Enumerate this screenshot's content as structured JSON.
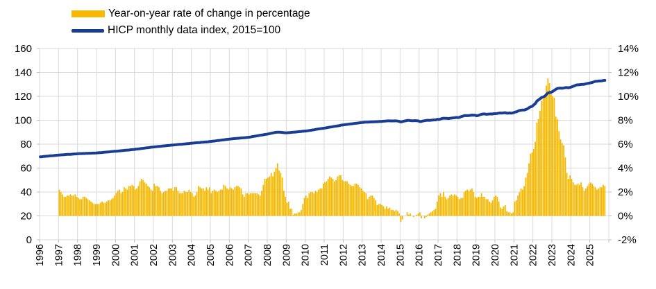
{
  "chart_data": {
    "type": "combo-bar-line",
    "grid": true,
    "legend_position": "top-left",
    "x_axis": {
      "start_year": 1996,
      "end_year": 2025,
      "tick_labels": [
        "1996",
        "1997",
        "1998",
        "1999",
        "2000",
        "2001",
        "2002",
        "2003",
        "2004",
        "2005",
        "2006",
        "2007",
        "2008",
        "2009",
        "2010",
        "2011",
        "2012",
        "2013",
        "2014",
        "2015",
        "2016",
        "2017",
        "2018",
        "2019",
        "2020",
        "2021",
        "2022",
        "2023",
        "2024",
        "2025"
      ]
    },
    "left_axis": {
      "min": 0,
      "max": 160,
      "step": 20,
      "tick_labels": [
        "160",
        "140",
        "120",
        "100",
        "80",
        "60",
        "40",
        "20",
        "0"
      ]
    },
    "right_axis": {
      "min": -2,
      "max": 14,
      "step": 2,
      "tick_labels": [
        "14%",
        "12%",
        "10%",
        "8%",
        "6%",
        "4%",
        "2%",
        "0%",
        "-2%"
      ]
    },
    "series": [
      {
        "name": "Year-on-year rate of change in percentage",
        "type": "bar",
        "axis": "right",
        "color": "#F7B800",
        "unit": "%",
        "start": "1997-01",
        "frequency": "monthly",
        "values": [
          2.2,
          2.0,
          1.8,
          1.6,
          1.6,
          1.7,
          1.7,
          1.8,
          1.7,
          1.7,
          1.8,
          1.6,
          1.5,
          1.4,
          1.4,
          1.6,
          1.6,
          1.5,
          1.4,
          1.3,
          1.2,
          1.1,
          1.0,
          1.0,
          1.0,
          1.0,
          1.1,
          1.2,
          1.1,
          1.1,
          1.2,
          1.3,
          1.3,
          1.4,
          1.5,
          1.7,
          1.9,
          2.1,
          2.2,
          1.9,
          2.0,
          2.4,
          2.3,
          2.2,
          2.5,
          2.5,
          2.6,
          2.5,
          2.2,
          2.3,
          2.5,
          2.9,
          3.1,
          3.0,
          2.8,
          2.7,
          2.5,
          2.4,
          2.2,
          2.1,
          2.7,
          2.5,
          2.5,
          2.4,
          2.1,
          1.9,
          2.0,
          2.1,
          2.1,
          2.3,
          2.3,
          2.3,
          2.1,
          2.4,
          2.4,
          2.1,
          1.9,
          1.9,
          1.9,
          2.1,
          2.0,
          2.0,
          2.2,
          2.0,
          1.9,
          1.6,
          1.7,
          2.0,
          2.5,
          2.4,
          2.3,
          2.3,
          2.1,
          2.4,
          2.2,
          2.4,
          1.9,
          2.1,
          2.2,
          2.1,
          2.0,
          2.1,
          2.2,
          2.2,
          2.6,
          2.5,
          2.3,
          2.2,
          2.4,
          2.3,
          2.2,
          2.4,
          2.5,
          2.5,
          2.4,
          2.3,
          1.8,
          1.6,
          1.9,
          1.9,
          1.8,
          1.9,
          1.9,
          1.9,
          1.9,
          1.9,
          1.8,
          1.7,
          2.1,
          2.6,
          3.1,
          3.1,
          3.2,
          3.3,
          3.6,
          3.3,
          3.7,
          4.0,
          4.4,
          3.8,
          3.6,
          3.2,
          2.1,
          1.6,
          1.1,
          1.2,
          0.6,
          0.6,
          0.1,
          0.2,
          0.2,
          0.3,
          0.3,
          0.5,
          1.0,
          1.5,
          1.7,
          1.5,
          1.9,
          2.0,
          2.0,
          1.9,
          2.1,
          2.0,
          2.2,
          2.3,
          2.3,
          2.7,
          2.8,
          2.9,
          3.1,
          3.3,
          3.2,
          3.1,
          2.9,
          3.0,
          3.3,
          3.4,
          3.4,
          3.0,
          2.9,
          2.9,
          2.9,
          2.7,
          2.6,
          2.5,
          2.5,
          2.7,
          2.7,
          2.6,
          2.4,
          2.3,
          2.1,
          2.0,
          1.9,
          1.4,
          1.6,
          1.7,
          1.7,
          1.5,
          1.3,
          0.9,
          1.0,
          1.0,
          0.9,
          0.8,
          0.6,
          0.8,
          0.6,
          0.7,
          0.5,
          0.5,
          0.4,
          0.5,
          0.4,
          0.2,
          -0.5,
          -0.3,
          0.0,
          0.0,
          0.3,
          0.1,
          0.2,
          0.0,
          -0.1,
          0.0,
          0.1,
          0.2,
          0.3,
          -0.2,
          0.0,
          -0.2,
          -0.1,
          0.1,
          0.2,
          0.3,
          0.4,
          0.5,
          0.6,
          1.2,
          1.7,
          1.9,
          1.6,
          2.0,
          1.6,
          1.4,
          1.5,
          1.7,
          1.8,
          1.7,
          1.8,
          1.7,
          1.6,
          1.4,
          1.5,
          1.5,
          2.0,
          2.1,
          2.2,
          2.1,
          2.2,
          2.3,
          2.0,
          1.6,
          1.5,
          1.6,
          1.6,
          1.9,
          1.6,
          1.6,
          1.4,
          1.4,
          1.2,
          1.1,
          1.3,
          1.6,
          1.7,
          1.6,
          1.2,
          0.7,
          0.6,
          0.8,
          0.9,
          0.4,
          0.3,
          0.3,
          0.2,
          0.3,
          1.2,
          1.3,
          1.7,
          2.0,
          2.3,
          2.2,
          2.5,
          3.2,
          3.6,
          4.4,
          5.2,
          5.3,
          5.6,
          6.2,
          7.8,
          8.1,
          8.8,
          9.6,
          9.8,
          10.1,
          10.9,
          11.5,
          11.1,
          10.4,
          10.0,
          9.9,
          8.3,
          8.1,
          7.1,
          6.4,
          6.1,
          5.9,
          4.9,
          3.6,
          3.1,
          3.4,
          3.1,
          2.8,
          2.6,
          2.6,
          2.7,
          2.6,
          2.8,
          2.4,
          2.1,
          2.3,
          2.5,
          2.7,
          2.8,
          2.7,
          2.5,
          2.4,
          2.2,
          2.3,
          2.4,
          2.4,
          2.6,
          2.5
        ]
      },
      {
        "name": "HICP monthly data index, 2015=100",
        "type": "line",
        "axis": "left",
        "color": "#1A3D94",
        "start": "1996-01",
        "frequency": "monthly",
        "values": [
          69.4,
          69.5,
          69.7,
          69.8,
          69.9,
          70.0,
          70.2,
          70.3,
          70.4,
          70.5,
          70.7,
          70.8,
          70.9,
          71.0,
          71.1,
          71.2,
          71.3,
          71.4,
          71.5,
          71.5,
          71.6,
          71.7,
          71.8,
          71.9,
          72.0,
          72.1,
          72.1,
          72.2,
          72.2,
          72.3,
          72.3,
          72.4,
          72.4,
          72.5,
          72.5,
          72.6,
          72.7,
          72.8,
          72.9,
          73.0,
          73.2,
          73.3,
          73.4,
          73.5,
          73.6,
          73.8,
          73.9,
          74.0,
          74.1,
          74.2,
          74.4,
          74.5,
          74.6,
          74.8,
          74.9,
          75.0,
          75.1,
          75.3,
          75.4,
          75.5,
          75.7,
          75.9,
          76.0,
          76.2,
          76.4,
          76.5,
          76.7,
          76.9,
          77.0,
          77.2,
          77.4,
          77.5,
          77.7,
          77.8,
          78.0,
          78.1,
          78.2,
          78.4,
          78.5,
          78.6,
          78.8,
          78.9,
          79.0,
          79.2,
          79.3,
          79.4,
          79.6,
          79.7,
          79.8,
          79.9,
          80.0,
          80.2,
          80.3,
          80.4,
          80.5,
          80.7,
          80.8,
          80.9,
          81.1,
          81.2,
          81.3,
          81.4,
          81.6,
          81.7,
          81.8,
          81.9,
          82.0,
          82.2,
          82.3,
          82.5,
          82.6,
          82.8,
          83.0,
          83.1,
          83.3,
          83.5,
          83.6,
          83.8,
          84.0,
          84.1,
          84.3,
          84.4,
          84.6,
          84.7,
          84.8,
          84.9,
          85.0,
          85.2,
          85.3,
          85.4,
          85.5,
          85.7,
          85.8,
          86.0,
          86.3,
          86.5,
          86.7,
          86.9,
          87.2,
          87.4,
          87.6,
          87.8,
          88.1,
          88.3,
          88.5,
          88.8,
          89.1,
          89.4,
          89.7,
          89.9,
          90.0,
          90.0,
          89.9,
          89.8,
          89.6,
          89.5,
          89.5,
          89.6,
          89.7,
          89.9,
          90.0,
          90.1,
          90.2,
          90.4,
          90.5,
          90.6,
          90.8,
          90.9,
          91.0,
          91.2,
          91.4,
          91.6,
          91.8,
          92.0,
          92.3,
          92.5,
          92.7,
          92.9,
          93.1,
          93.3,
          93.5,
          93.7,
          94.0,
          94.2,
          94.4,
          94.6,
          94.9,
          95.1,
          95.3,
          95.5,
          95.8,
          96.0,
          96.2,
          96.4,
          96.5,
          96.7,
          96.9,
          97.0,
          97.2,
          97.4,
          97.5,
          97.7,
          97.9,
          98.0,
          98.2,
          98.3,
          98.4,
          98.4,
          98.5,
          98.6,
          98.6,
          98.7,
          98.8,
          98.8,
          98.9,
          99.0,
          99.1,
          99.2,
          99.3,
          99.4,
          99.5,
          99.5,
          99.4,
          99.4,
          99.5,
          99.5,
          99.3,
          99.0,
          98.6,
          98.9,
          99.3,
          99.5,
          99.8,
          99.9,
          99.7,
          99.6,
          99.6,
          99.7,
          99.6,
          99.5,
          98.9,
          99.0,
          99.4,
          99.6,
          99.8,
          100.0,
          99.9,
          100.0,
          100.2,
          100.3,
          100.3,
          100.8,
          100.6,
          101.0,
          101.4,
          101.7,
          101.6,
          101.6,
          101.4,
          101.6,
          101.8,
          102.0,
          102.1,
          102.4,
          102.2,
          102.4,
          103.0,
          103.3,
          103.8,
          103.9,
          103.8,
          103.9,
          104.1,
          104.3,
          104.2,
          104.2,
          103.7,
          104.0,
          104.6,
          105.0,
          105.2,
          105.3,
          105.0,
          105.1,
          105.2,
          105.3,
          105.2,
          105.5,
          105.5,
          105.7,
          106.0,
          106.1,
          106.0,
          106.2,
          106.3,
          105.9,
          106.0,
          106.1,
          105.9,
          106.2,
          106.8,
          107.0,
          107.6,
          108.1,
          108.4,
          108.6,
          108.5,
          109.0,
          109.5,
          110.5,
          111.2,
          111.6,
          112.8,
          113.9,
          116.0,
          116.9,
          117.9,
          119.0,
          119.4,
          120.1,
          121.5,
          122.8,
          123.2,
          123.4,
          124.1,
          124.9,
          125.9,
          126.6,
          126.8,
          126.9,
          126.7,
          127.0,
          127.3,
          127.3,
          127.2,
          127.4,
          127.9,
          128.4,
          128.9,
          129.5,
          129.6,
          129.7,
          129.9,
          130.0,
          130.1,
          130.5,
          130.8,
          131.0,
          131.3,
          131.6,
          132.1,
          132.5,
          132.6,
          132.8,
          132.9,
          133.0,
          133.2,
          133.4
        ]
      }
    ]
  },
  "colors": {
    "grid": "#D9D9D9",
    "tick": "#BFBFBF",
    "text": "#000000",
    "background": "#FFFFFF"
  }
}
